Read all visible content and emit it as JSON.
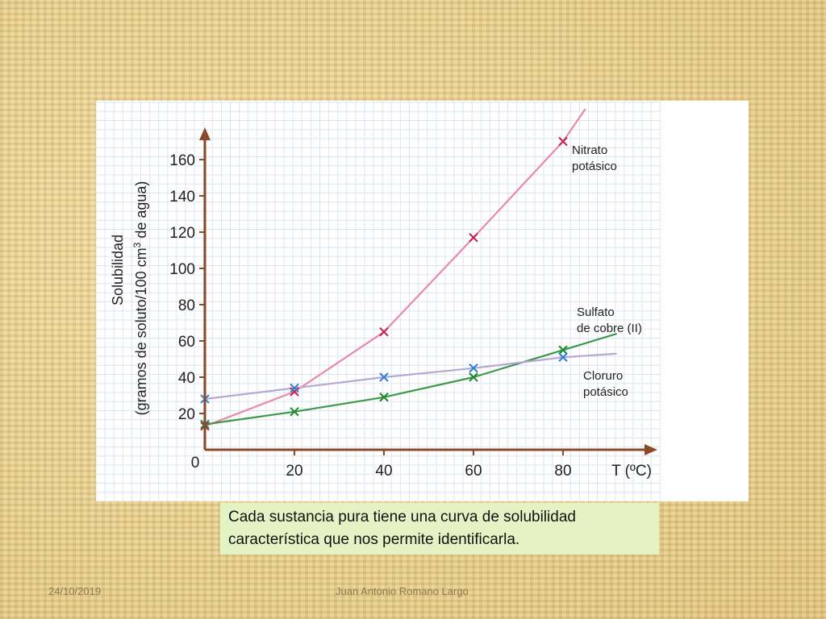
{
  "chart_data": {
    "type": "line",
    "ylabel_line1": "Solubilidad",
    "ylabel_line2": "(gramos de soluto/100 cm",
    "ylabel_sup": "3",
    "ylabel_line2_end": " de agua)",
    "xlabel": "T (ºC)",
    "origin_label": "0",
    "xlim": [
      0,
      100
    ],
    "ylim": [
      0,
      175
    ],
    "x_ticks": [
      20,
      40,
      60,
      80
    ],
    "y_ticks": [
      20,
      40,
      60,
      80,
      100,
      120,
      140,
      160
    ],
    "grid": true,
    "series": [
      {
        "name_line1": "Nitrato",
        "name_line2": "potásico",
        "color": "#e88aa6",
        "marker_color": "#c4234f",
        "x": [
          0,
          20,
          40,
          60,
          80
        ],
        "y": [
          13,
          32,
          65,
          117,
          170
        ],
        "curve_x": [
          0,
          20,
          40,
          60,
          80,
          85
        ],
        "curve_y": [
          13,
          32,
          65,
          117,
          170,
          188
        ]
      },
      {
        "name_line1": "Sulfato",
        "name_line2": "de cobre (II)",
        "color": "#3a9a47",
        "marker_color": "#1f8a2e",
        "x": [
          0,
          20,
          40,
          60,
          80
        ],
        "y": [
          14,
          21,
          29,
          40,
          55
        ],
        "curve_x": [
          0,
          20,
          40,
          60,
          80,
          92
        ],
        "curve_y": [
          14,
          21,
          29,
          40,
          55,
          64
        ]
      },
      {
        "name_line1": "Cloruro",
        "name_line2": "potásico",
        "color": "#b7a7d4",
        "marker_color": "#2f7fd0",
        "x": [
          0,
          20,
          40,
          60,
          80
        ],
        "y": [
          28,
          34,
          40,
          45,
          51
        ],
        "curve_x": [
          0,
          20,
          40,
          60,
          80,
          92
        ],
        "curve_y": [
          28,
          34,
          40,
          45,
          51,
          53
        ]
      }
    ]
  },
  "caption": {
    "line1": "Cada sustancia pura tiene una curva de solubilidad",
    "line2": "característica que nos permite identificarla."
  },
  "footer": {
    "date": "24/10/2019",
    "author": "Juan Antonio Romano Largo"
  },
  "colors": {
    "axis": "#8a4a2a",
    "grid": "#dde6f0",
    "caption_bg": "#e4f3c3"
  }
}
